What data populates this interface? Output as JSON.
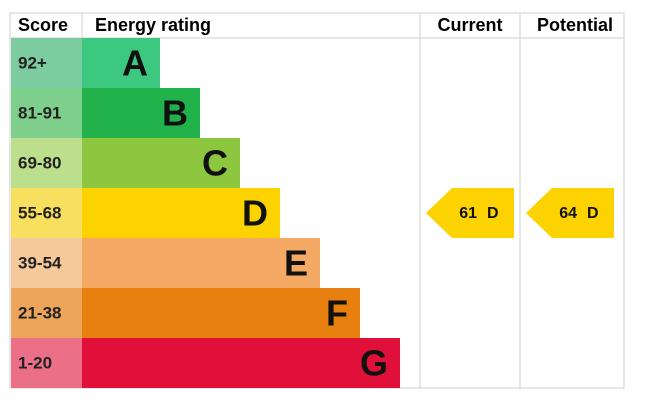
{
  "header": {
    "score": "Score",
    "rating": "Energy rating",
    "current": "Current",
    "potential": "Potential"
  },
  "bands": [
    {
      "score": "92+",
      "letter": "A",
      "color": "#3cc87e",
      "score_color": "#7dcba0"
    },
    {
      "score": "81-91",
      "letter": "B",
      "color": "#22b24c",
      "score_color": "#7ecf8b"
    },
    {
      "score": "69-80",
      "letter": "C",
      "color": "#8dc63f",
      "score_color": "#bcdf8e"
    },
    {
      "score": "55-68",
      "letter": "D",
      "color": "#fcd200",
      "score_color": "#f9df5e"
    },
    {
      "score": "39-54",
      "letter": "E",
      "color": "#f4aa65",
      "score_color": "#f6c99b"
    },
    {
      "score": "21-38",
      "letter": "F",
      "color": "#e8800f",
      "score_color": "#eca55b"
    },
    {
      "score": "1-20",
      "letter": "G",
      "color": "#e0103a",
      "score_color": "#eb6f87"
    }
  ],
  "current": {
    "value": 61,
    "band": "D"
  },
  "potential": {
    "value": 64,
    "band": "D"
  }
}
